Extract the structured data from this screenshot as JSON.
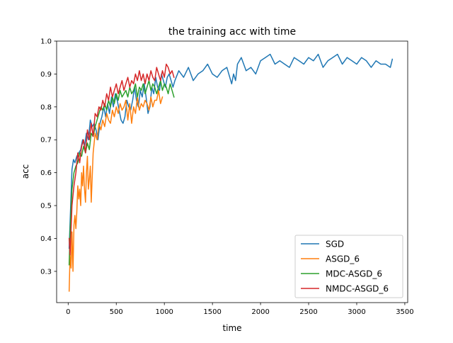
{
  "chart_data": {
    "type": "line",
    "title": "the training acc with time",
    "xlabel": "time",
    "ylabel": "acc",
    "xlim": [
      -120,
      3530
    ],
    "ylim": [
      0.205,
      1.0
    ],
    "xticks": [
      0,
      500,
      1000,
      1500,
      2000,
      2500,
      3000,
      3500
    ],
    "yticks": [
      0.3,
      0.4,
      0.5,
      0.6,
      0.7,
      0.8,
      0.9,
      1.0
    ],
    "xtick_labels": [
      "0",
      "500",
      "1000",
      "1500",
      "2000",
      "2500",
      "3000",
      "3500"
    ],
    "ytick_labels": [
      "0.3",
      "0.4",
      "0.5",
      "0.6",
      "0.7",
      "0.8",
      "0.9",
      "1.0"
    ],
    "grid": false,
    "legend_position": "lower-right",
    "series": [
      {
        "name": "SGD",
        "color": "#1f77b4",
        "x": [
          10,
          25,
          40,
          55,
          70,
          90,
          110,
          130,
          150,
          170,
          190,
          210,
          230,
          250,
          270,
          290,
          310,
          330,
          350,
          370,
          390,
          410,
          430,
          450,
          470,
          490,
          510,
          530,
          550,
          570,
          590,
          610,
          630,
          650,
          670,
          690,
          710,
          730,
          750,
          770,
          790,
          810,
          830,
          850,
          870,
          890,
          910,
          930,
          950,
          970,
          990,
          1010,
          1030,
          1050,
          1070,
          1090,
          1110,
          1150,
          1200,
          1250,
          1300,
          1350,
          1400,
          1450,
          1500,
          1550,
          1600,
          1650,
          1700,
          1720,
          1740,
          1760,
          1800,
          1850,
          1900,
          1950,
          2000,
          2050,
          2100,
          2150,
          2200,
          2250,
          2300,
          2350,
          2400,
          2450,
          2500,
          2550,
          2600,
          2650,
          2700,
          2750,
          2800,
          2850,
          2900,
          2950,
          3000,
          3050,
          3100,
          3150,
          3200,
          3250,
          3300,
          3350,
          3370
        ],
        "y": [
          0.37,
          0.49,
          0.61,
          0.64,
          0.63,
          0.65,
          0.66,
          0.67,
          0.7,
          0.68,
          0.72,
          0.7,
          0.76,
          0.74,
          0.75,
          0.73,
          0.7,
          0.75,
          0.77,
          0.8,
          0.77,
          0.81,
          0.78,
          0.83,
          0.8,
          0.84,
          0.82,
          0.79,
          0.76,
          0.75,
          0.77,
          0.82,
          0.8,
          0.79,
          0.82,
          0.86,
          0.82,
          0.8,
          0.85,
          0.83,
          0.87,
          0.83,
          0.78,
          0.8,
          0.86,
          0.84,
          0.89,
          0.86,
          0.85,
          0.9,
          0.88,
          0.86,
          0.89,
          0.9,
          0.88,
          0.86,
          0.88,
          0.91,
          0.89,
          0.92,
          0.88,
          0.9,
          0.91,
          0.93,
          0.9,
          0.89,
          0.91,
          0.92,
          0.87,
          0.9,
          0.88,
          0.93,
          0.95,
          0.91,
          0.92,
          0.9,
          0.94,
          0.95,
          0.96,
          0.93,
          0.94,
          0.93,
          0.92,
          0.95,
          0.94,
          0.93,
          0.95,
          0.94,
          0.96,
          0.92,
          0.94,
          0.95,
          0.96,
          0.93,
          0.95,
          0.94,
          0.93,
          0.95,
          0.94,
          0.92,
          0.94,
          0.93,
          0.93,
          0.92,
          0.945
        ]
      },
      {
        "name": "ASGD_6",
        "color": "#ff7f0e",
        "x": [
          10,
          20,
          30,
          40,
          50,
          60,
          70,
          80,
          90,
          100,
          110,
          120,
          130,
          140,
          150,
          160,
          170,
          180,
          190,
          200,
          210,
          220,
          230,
          240,
          260,
          280,
          300,
          320,
          340,
          360,
          380,
          400,
          420,
          440,
          460,
          480,
          500,
          520,
          540,
          560,
          580,
          600,
          620,
          640,
          660,
          680,
          700,
          720,
          740,
          760,
          780,
          800,
          820,
          840,
          860,
          880,
          900,
          920,
          940,
          960,
          980
        ],
        "y": [
          0.24,
          0.35,
          0.31,
          0.42,
          0.3,
          0.44,
          0.47,
          0.43,
          0.48,
          0.56,
          0.52,
          0.55,
          0.5,
          0.6,
          0.56,
          0.62,
          0.55,
          0.51,
          0.6,
          0.65,
          0.55,
          0.58,
          0.62,
          0.51,
          0.66,
          0.72,
          0.7,
          0.75,
          0.73,
          0.76,
          0.74,
          0.78,
          0.76,
          0.75,
          0.79,
          0.77,
          0.8,
          0.78,
          0.81,
          0.79,
          0.8,
          0.82,
          0.76,
          0.81,
          0.75,
          0.8,
          0.78,
          0.83,
          0.79,
          0.81,
          0.8,
          0.82,
          0.81,
          0.79,
          0.83,
          0.8,
          0.82,
          0.82,
          0.85,
          0.81,
          0.83
        ]
      },
      {
        "name": "MDC-ASGD_6",
        "color": "#2ca02c",
        "x": [
          10,
          20,
          40,
          60,
          80,
          100,
          120,
          140,
          160,
          180,
          200,
          220,
          240,
          260,
          280,
          300,
          320,
          340,
          360,
          380,
          400,
          420,
          440,
          460,
          480,
          500,
          520,
          540,
          560,
          580,
          600,
          620,
          640,
          660,
          680,
          700,
          720,
          740,
          760,
          780,
          800,
          820,
          840,
          860,
          880,
          900,
          920,
          940,
          960,
          980,
          1000,
          1020,
          1040,
          1060,
          1080,
          1100
        ],
        "y": [
          0.32,
          0.42,
          0.55,
          0.6,
          0.62,
          0.63,
          0.66,
          0.65,
          0.68,
          0.66,
          0.69,
          0.67,
          0.72,
          0.71,
          0.74,
          0.76,
          0.78,
          0.8,
          0.79,
          0.81,
          0.79,
          0.82,
          0.8,
          0.83,
          0.81,
          0.84,
          0.82,
          0.85,
          0.83,
          0.84,
          0.85,
          0.83,
          0.86,
          0.84,
          0.85,
          0.87,
          0.83,
          0.86,
          0.85,
          0.87,
          0.84,
          0.86,
          0.88,
          0.85,
          0.87,
          0.86,
          0.84,
          0.86,
          0.88,
          0.85,
          0.87,
          0.86,
          0.84,
          0.87,
          0.85,
          0.83
        ]
      },
      {
        "name": "NMDC-ASGD_6",
        "color": "#d62728",
        "x": [
          10,
          20,
          40,
          60,
          80,
          100,
          120,
          140,
          160,
          180,
          200,
          220,
          240,
          260,
          280,
          300,
          320,
          340,
          360,
          380,
          400,
          420,
          440,
          460,
          480,
          500,
          520,
          540,
          560,
          580,
          600,
          620,
          640,
          660,
          680,
          700,
          720,
          740,
          760,
          780,
          800,
          820,
          840,
          860,
          880,
          900,
          920,
          940,
          960,
          980,
          1000,
          1020,
          1040,
          1060,
          1080,
          1100
        ],
        "y": [
          0.4,
          0.35,
          0.5,
          0.56,
          0.6,
          0.66,
          0.63,
          0.68,
          0.7,
          0.66,
          0.73,
          0.7,
          0.75,
          0.71,
          0.78,
          0.77,
          0.8,
          0.79,
          0.82,
          0.8,
          0.84,
          0.82,
          0.86,
          0.83,
          0.85,
          0.87,
          0.84,
          0.86,
          0.88,
          0.85,
          0.87,
          0.89,
          0.86,
          0.88,
          0.87,
          0.9,
          0.88,
          0.91,
          0.88,
          0.9,
          0.87,
          0.9,
          0.88,
          0.91,
          0.89,
          0.88,
          0.92,
          0.9,
          0.88,
          0.91,
          0.89,
          0.93,
          0.92,
          0.9,
          0.91,
          0.89
        ]
      }
    ]
  }
}
